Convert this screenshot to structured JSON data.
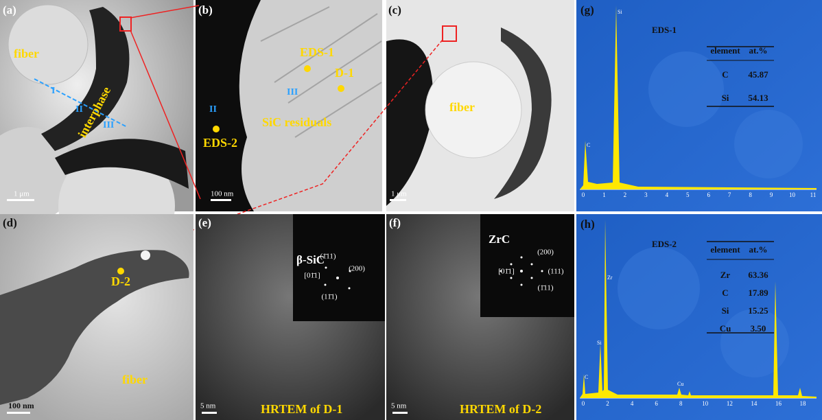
{
  "panels": {
    "a": {
      "label": "(a)",
      "fiber": "fiber",
      "interphase": "interphase",
      "i": "I",
      "ii": "II",
      "iii": "III",
      "scale": "1 μm"
    },
    "b": {
      "label": "(b)",
      "eds1": "EDS-1",
      "d1": "D-1",
      "iii": "III",
      "ii": "II",
      "eds2": "EDS-2",
      "sic": "SiC residuals",
      "scale": "100 nm"
    },
    "c": {
      "label": "(c)",
      "fiber": "fiber",
      "scale": "1 μm"
    },
    "g": {
      "label": "(g)",
      "title": "EDS-1",
      "header": [
        "element",
        "at.%"
      ],
      "rows": [
        [
          "C",
          "45.87"
        ],
        [
          "Si",
          "54.13"
        ]
      ],
      "peaks": [
        "C",
        "Si"
      ],
      "x_ticks": [
        0,
        1,
        2,
        3,
        4,
        5,
        6,
        7,
        8,
        9,
        10,
        11
      ]
    },
    "d": {
      "label": "(d)",
      "d2": "D-2",
      "fiber": "fiber",
      "scale": "100 nm"
    },
    "e": {
      "label": "(e)",
      "phase": "β-SiC",
      "spots": [
        "(1̄11)",
        "(200)",
        "[01̄1]",
        "(11̄1)"
      ],
      "scale": "5 nm",
      "caption": "HRTEM of D-1"
    },
    "f": {
      "label": "(f)",
      "phase": "ZrC",
      "spots": [
        "(200)",
        "[01̄1]",
        "(111)",
        "(1̄11)"
      ],
      "scale": "5 nm",
      "caption": "HRTEM of D-2"
    },
    "h": {
      "label": "(h)",
      "title": "EDS-2",
      "header": [
        "element",
        "at.%"
      ],
      "rows": [
        [
          "Zr",
          "63.36"
        ],
        [
          "C",
          "17.89"
        ],
        [
          "Si",
          "15.25"
        ],
        [
          "Cu",
          "3.50"
        ]
      ],
      "peaks": [
        "Zr",
        "C",
        "Si",
        "Cu"
      ],
      "x_ticks": [
        0,
        2,
        4,
        6,
        8,
        10,
        12,
        14,
        16,
        18
      ]
    }
  }
}
